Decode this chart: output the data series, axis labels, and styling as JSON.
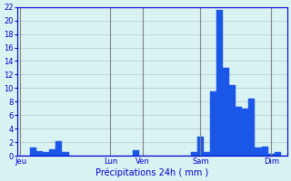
{
  "title": "",
  "xlabel": "Précipitations 24h ( mm )",
  "ylabel": "",
  "ylim": [
    0,
    22
  ],
  "yticks": [
    0,
    2,
    4,
    6,
    8,
    10,
    12,
    14,
    16,
    18,
    20,
    22
  ],
  "background_color": "#d9f2f2",
  "bar_color": "#1a56e8",
  "bar_edge_color": "#1a56e8",
  "grid_color": "#b0c8c8",
  "axis_color": "#0000cc",
  "day_labels": [
    "Jeu",
    "Lun",
    "Ven",
    "Sam",
    "Dim"
  ],
  "day_positions": [
    0,
    14,
    19,
    28,
    39
  ],
  "n_bars": 42,
  "values": [
    0,
    0,
    1.2,
    0.7,
    0.6,
    1.0,
    2.2,
    0.5,
    0,
    0,
    0,
    0,
    0,
    0,
    0,
    0,
    0,
    0,
    0.8,
    0,
    0,
    0,
    0,
    0,
    0,
    0,
    0,
    0.5,
    2.8,
    0.5,
    9.5,
    21.5,
    13.0,
    10.5,
    7.3,
    7.0,
    8.5,
    1.2,
    1.4,
    0.3,
    0.6,
    0
  ]
}
